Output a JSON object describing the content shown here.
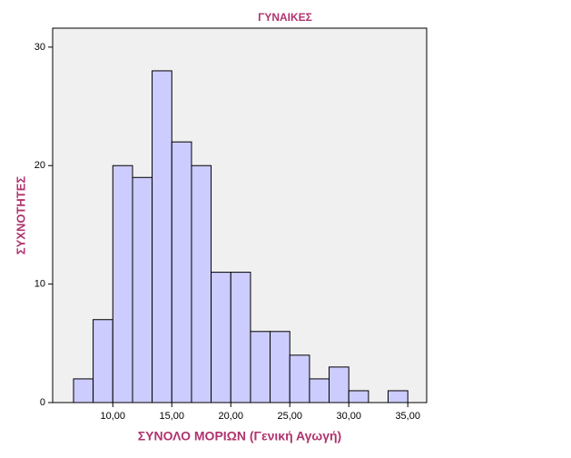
{
  "chart_data": {
    "type": "histogram",
    "title": "ΓΥΝΑΙΚΕΣ",
    "x_label": "ΣΥΝΟΛΟ ΜΟΡΙΩΝ (Γενική Αγωγή)",
    "y_label": "ΣΥΧΝΟΤΗΤΕΣ",
    "bins": [
      6.67,
      8.33,
      10,
      11.67,
      13.33,
      15,
      16.67,
      18.33,
      20,
      21.67,
      23.33,
      25,
      26.67,
      28.33,
      30,
      31.67,
      33.33,
      35
    ],
    "values": [
      2,
      7,
      20,
      19,
      28,
      22,
      20,
      11,
      11,
      6,
      6,
      4,
      2,
      3,
      1,
      0,
      1
    ],
    "color": "#ccccff",
    "xlim": [
      4.9,
      36.6
    ],
    "ylim": [
      0,
      31.6
    ],
    "xticks": [
      {
        "value": 10,
        "label": "10,00"
      },
      {
        "value": 15,
        "label": "15,00"
      },
      {
        "value": 20,
        "label": "20,00"
      },
      {
        "value": 25,
        "label": "25,00"
      },
      {
        "value": 30,
        "label": "30,00"
      },
      {
        "value": 35,
        "label": "35,00"
      }
    ],
    "yticks": [
      0,
      10,
      20,
      30
    ]
  }
}
